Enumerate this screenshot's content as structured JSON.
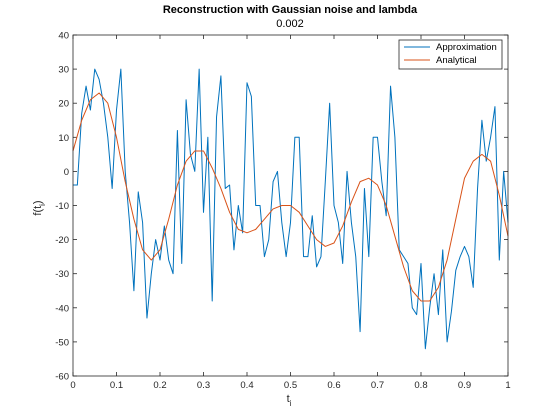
{
  "chart_data": {
    "type": "line",
    "title": "Reconstruction with Gaussian noise and lambda",
    "subtitle": "0.002",
    "xlabel_main": "t",
    "xlabel_sub": "i",
    "ylabel_main": "f(t",
    "ylabel_sub": "i",
    "ylabel_close": ")",
    "xlim": [
      0,
      1
    ],
    "ylim": [
      -60,
      40
    ],
    "xticks": [
      0,
      0.1,
      0.2,
      0.3,
      0.4,
      0.5,
      0.6,
      0.7,
      0.8,
      0.9,
      1
    ],
    "xtick_labels": [
      "0",
      "0.1",
      "0.2",
      "0.3",
      "0.4",
      "0.5",
      "0.6",
      "0.7",
      "0.8",
      "0.9",
      "1"
    ],
    "yticks": [
      40,
      30,
      20,
      10,
      0,
      -10,
      -20,
      -30,
      -40,
      -50,
      -60
    ],
    "ytick_labels": [
      "40",
      "30",
      "20",
      "10",
      "0",
      "-10",
      "-20",
      "-30",
      "-40",
      "-50",
      "-60"
    ],
    "grid": false,
    "legend_position": "top-right",
    "colors": {
      "approximation": "#0072BD",
      "analytical": "#D95319",
      "axis": "#262626"
    },
    "series": [
      {
        "name": "Approximation",
        "color": "#0072BD",
        "x": [
          0.0,
          0.01,
          0.02,
          0.03,
          0.04,
          0.05,
          0.06,
          0.07,
          0.08,
          0.09,
          0.1,
          0.11,
          0.12,
          0.13,
          0.14,
          0.15,
          0.16,
          0.17,
          0.18,
          0.19,
          0.2,
          0.21,
          0.22,
          0.23,
          0.24,
          0.25,
          0.26,
          0.27,
          0.28,
          0.29,
          0.3,
          0.31,
          0.32,
          0.33,
          0.34,
          0.35,
          0.36,
          0.37,
          0.38,
          0.39,
          0.4,
          0.41,
          0.42,
          0.43,
          0.44,
          0.45,
          0.46,
          0.47,
          0.48,
          0.49,
          0.5,
          0.51,
          0.52,
          0.53,
          0.54,
          0.55,
          0.56,
          0.57,
          0.58,
          0.59,
          0.6,
          0.61,
          0.62,
          0.63,
          0.64,
          0.65,
          0.66,
          0.67,
          0.68,
          0.69,
          0.7,
          0.71,
          0.72,
          0.73,
          0.74,
          0.75,
          0.76,
          0.77,
          0.78,
          0.79,
          0.8,
          0.81,
          0.82,
          0.83,
          0.84,
          0.85,
          0.86,
          0.87,
          0.88,
          0.89,
          0.9,
          0.91,
          0.92,
          0.93,
          0.94,
          0.95,
          0.96,
          0.97,
          0.98,
          0.99,
          1.0
        ],
        "values": [
          -4,
          -4,
          17,
          25,
          18,
          30,
          27,
          20,
          10,
          -5,
          18,
          30,
          0,
          -15,
          -35,
          -6,
          -15,
          -43,
          -30,
          -20,
          -26,
          -16,
          -26,
          -30,
          12,
          -27,
          21,
          5,
          0,
          30,
          -12,
          10,
          -38,
          16,
          28,
          -5,
          -4,
          -23,
          -10,
          -18,
          26,
          22,
          -10,
          -10,
          -25,
          -20,
          -3,
          0,
          -15,
          -25,
          -15,
          10,
          10,
          -25,
          -25,
          -13,
          -28,
          -25,
          -3,
          20,
          -10,
          -15,
          -27,
          0,
          -15,
          -25,
          -47,
          -5,
          -25,
          10,
          10,
          -3,
          -13,
          25,
          10,
          -23,
          -25,
          -27,
          -40,
          -42,
          -27,
          -52,
          -40,
          -30,
          -42,
          -23,
          -50,
          -41,
          -29,
          -25,
          -22,
          -25,
          -34,
          -5,
          15,
          3,
          10,
          19,
          -26,
          0,
          -15
        ]
      },
      {
        "name": "Analytical",
        "color": "#D95319",
        "x": [
          0.0,
          0.02,
          0.04,
          0.06,
          0.08,
          0.1,
          0.12,
          0.14,
          0.16,
          0.18,
          0.2,
          0.22,
          0.24,
          0.26,
          0.28,
          0.3,
          0.32,
          0.34,
          0.36,
          0.38,
          0.4,
          0.42,
          0.44,
          0.46,
          0.48,
          0.5,
          0.52,
          0.54,
          0.56,
          0.58,
          0.6,
          0.62,
          0.64,
          0.66,
          0.68,
          0.7,
          0.72,
          0.74,
          0.76,
          0.78,
          0.8,
          0.82,
          0.84,
          0.86,
          0.88,
          0.9,
          0.92,
          0.94,
          0.96,
          0.98,
          1.0
        ],
        "values": [
          6,
          15,
          21,
          23,
          20,
          10,
          -3,
          -14,
          -23,
          -26,
          -23,
          -14,
          -4,
          3,
          6,
          6,
          1,
          -5,
          -12,
          -17,
          -18,
          -17,
          -14,
          -11,
          -10,
          -10,
          -12,
          -16,
          -20,
          -22,
          -21,
          -16,
          -9,
          -3,
          -2,
          -4,
          -10,
          -19,
          -28,
          -35,
          -38,
          -38,
          -34,
          -26,
          -14,
          -2,
          3,
          5,
          3,
          -7,
          -19
        ]
      }
    ]
  }
}
